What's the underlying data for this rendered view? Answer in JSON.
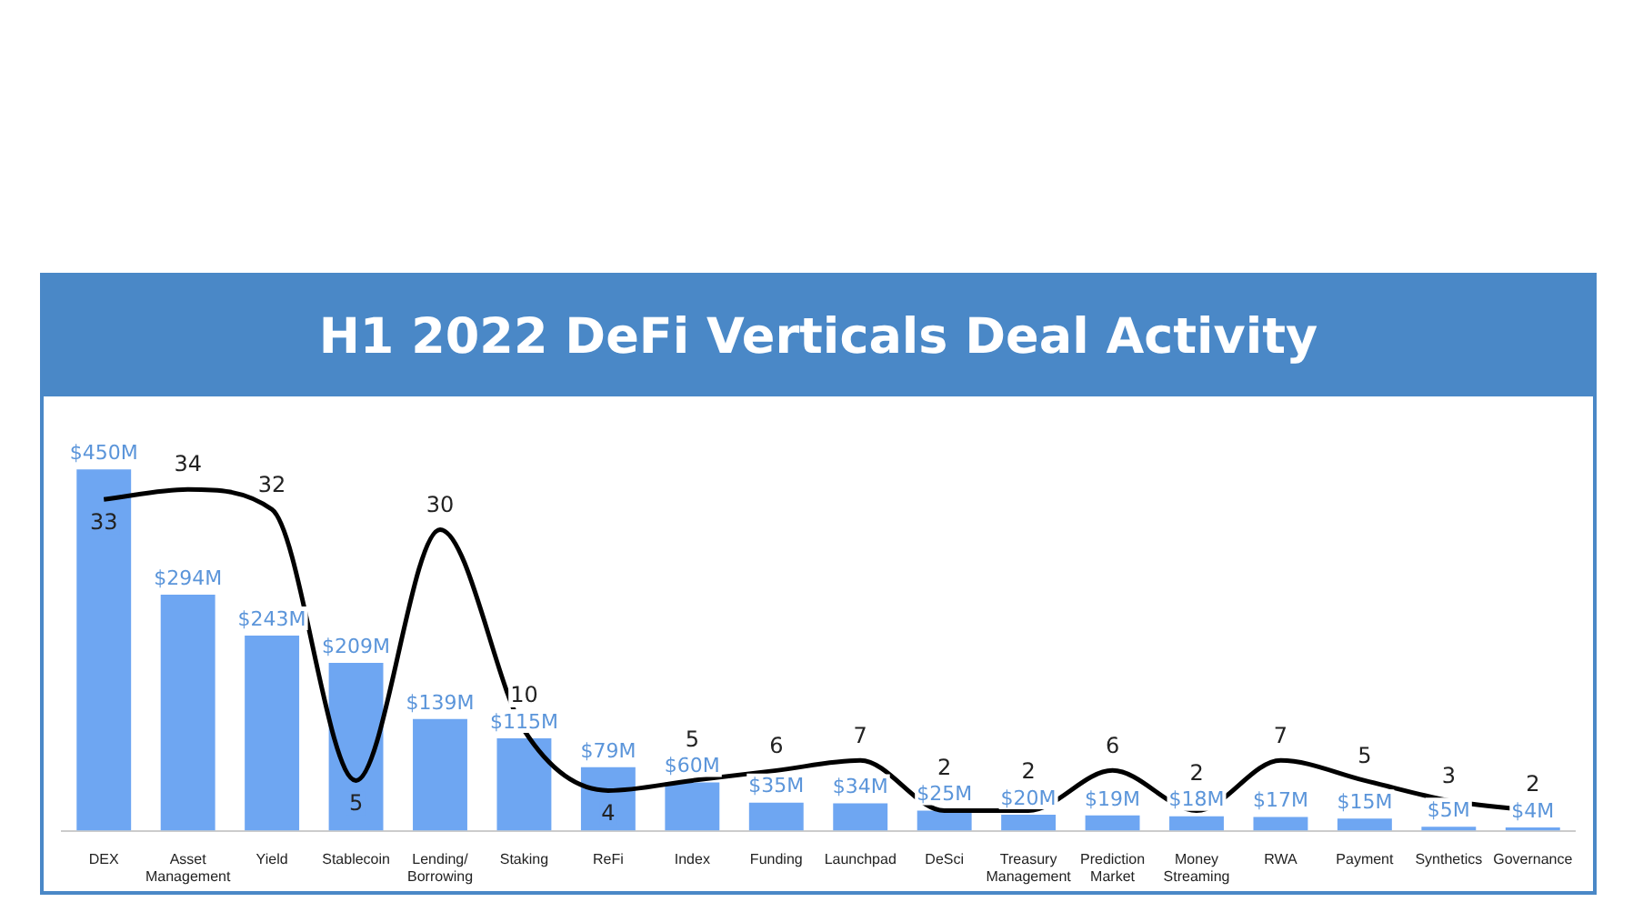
{
  "chart_data": {
    "type": "bar",
    "title": "H1 2022 DeFi Verticals Deal Activity",
    "categories": [
      "DEX",
      "Asset Management",
      "Yield",
      "Stablecoin",
      "Lending/Borrowing",
      "Staking",
      "ReFi",
      "Index",
      "Funding",
      "Launchpad",
      "DeSci",
      "Treasury Management",
      "Prediction Market",
      "Money Streaming",
      "RWA",
      "Payment",
      "Synthetics",
      "Governance"
    ],
    "series": [
      {
        "color": "#6ea6f2",
        "values": [
          450,
          294,
          243,
          209,
          139,
          115,
          79,
          60,
          35,
          34,
          25,
          20,
          19,
          18,
          17,
          15,
          5,
          4
        ],
        "value_labels": [
          "$450M",
          "$294M",
          "$243M",
          "$209M",
          "$139M",
          "$115M",
          "$79M",
          "$60M",
          "$35M",
          "$34M",
          "$25M",
          "$20M",
          "$19M",
          "$18M",
          "$17M",
          "$15M",
          "$5M",
          "$4M"
        ]
      },
      {
        "type": "line",
        "axis": "y2",
        "color": "#000000",
        "values": [
          33,
          34,
          32,
          5,
          30,
          10,
          4,
          5,
          6,
          7,
          2,
          2,
          6,
          2,
          7,
          5,
          3,
          2
        ],
        "value_labels": [
          "33",
          "34",
          "32",
          "5",
          "30",
          "10",
          "4",
          "5",
          "6",
          "7",
          "2",
          "2",
          "6",
          "2",
          "7",
          "5",
          "3",
          "2"
        ]
      }
    ],
    "tick_labels": "x",
    "grid": false,
    "legend": false,
    "marker": "none"
  }
}
